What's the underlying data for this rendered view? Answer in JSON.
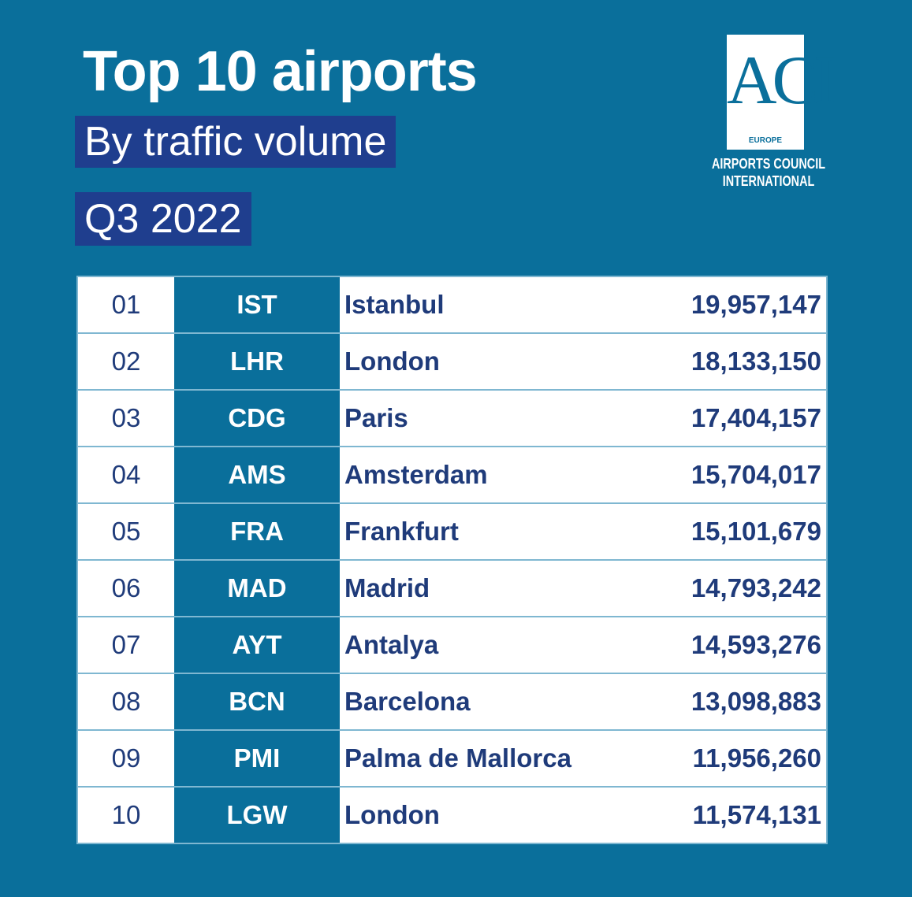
{
  "header": {
    "title": "Top 10 airports",
    "subtitle": "By traffic volume",
    "period": "Q3 2022"
  },
  "logo": {
    "mark": "ACI",
    "region": "EUROPE",
    "line1": "AIRPORTS COUNCIL",
    "line2": "INTERNATIONAL"
  },
  "table": {
    "rows": [
      [
        "01",
        "IST",
        "Istanbul",
        "19,957,147"
      ],
      [
        "02",
        "LHR",
        "London",
        "18,133,150"
      ],
      [
        "03",
        "CDG",
        "Paris",
        "17,404,157"
      ],
      [
        "04",
        "AMS",
        "Amsterdam",
        "15,704,017"
      ],
      [
        "05",
        "FRA",
        "Frankfurt",
        "15,101,679"
      ],
      [
        "06",
        "MAD",
        "Madrid",
        "14,793,242"
      ],
      [
        "07",
        "AYT",
        "Antalya",
        "14,593,276"
      ],
      [
        "08",
        "BCN",
        "Barcelona",
        "13,098,883"
      ],
      [
        "09",
        "PMI",
        "Palma de Mallorca",
        "11,956,260"
      ],
      [
        "10",
        "LGW",
        "London",
        "11,574,131"
      ]
    ]
  }
}
